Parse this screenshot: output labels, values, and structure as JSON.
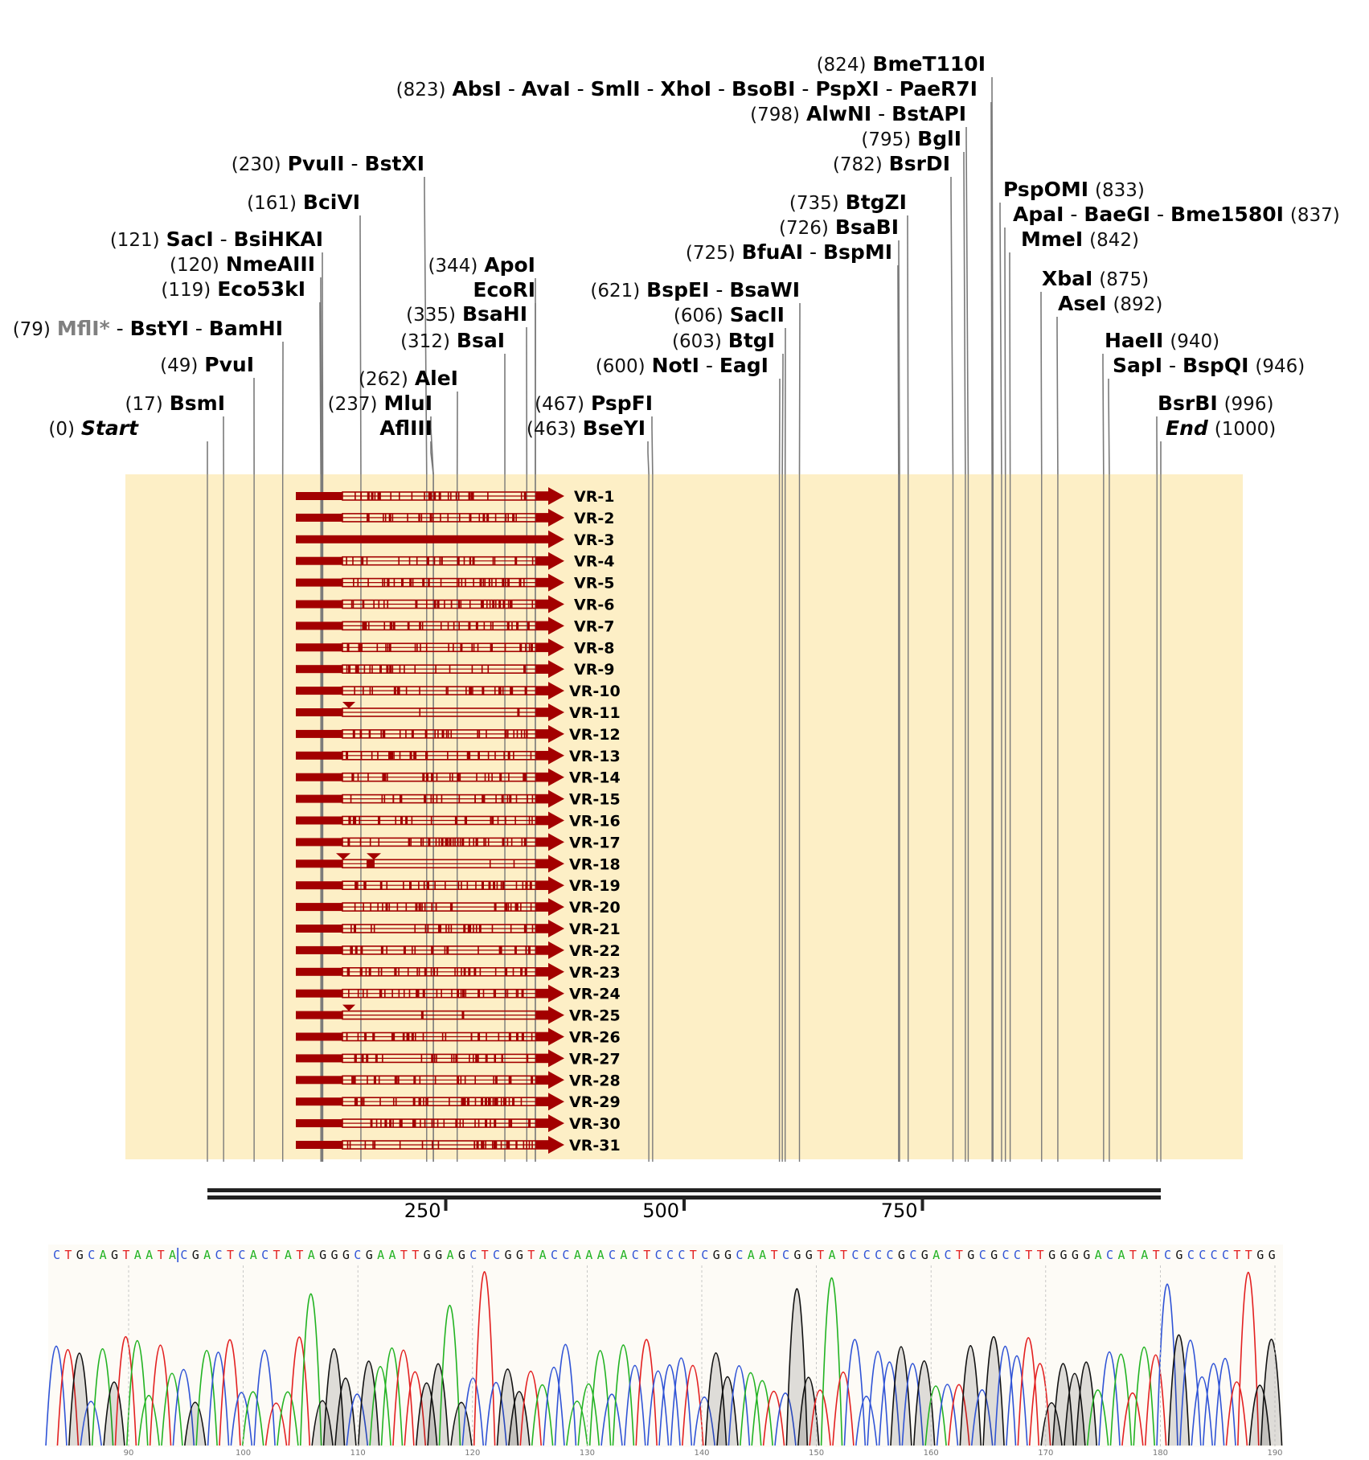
{
  "sequence_length": 1000,
  "colors": {
    "read_fill": "#a30000",
    "alignment_bg": "#fdefc6",
    "site_line": "#7a7a7a",
    "ruler": "#222222",
    "base_A": "#22b322",
    "base_C": "#2f53d6",
    "base_G": "#111111",
    "base_T": "#e32020",
    "trace_bg": "#fdfbf6"
  },
  "icons": {
    "read_end": "arrow-head",
    "insertion": "triangle-down-marker"
  },
  "sites": [
    {
      "id": "start",
      "number": "(0)",
      "names": [
        "Start"
      ],
      "pos": 0,
      "special": true
    },
    {
      "id": "bsmi",
      "number": "(17)",
      "names": [
        "BsmI"
      ],
      "pos": 17
    },
    {
      "id": "pvui",
      "number": "(49)",
      "names": [
        "PvuI"
      ],
      "pos": 49
    },
    {
      "id": "mfli",
      "number": "(79)",
      "names": [
        "MflI*",
        "BstYI",
        "BamHI"
      ],
      "pos": 79,
      "nondefault": [
        "MflI*"
      ]
    },
    {
      "id": "eco53ki",
      "number": "(119)",
      "names": [
        "Eco53kI"
      ],
      "pos": 119
    },
    {
      "id": "nmeaiii",
      "number": "(120)",
      "names": [
        "NmeAIII"
      ],
      "pos": 120
    },
    {
      "id": "saci",
      "number": "(121)",
      "names": [
        "SacI",
        "BsiHKAI"
      ],
      "pos": 121
    },
    {
      "id": "bcivi",
      "number": "(161)",
      "names": [
        "BciVI"
      ],
      "pos": 161
    },
    {
      "id": "pvuii",
      "number": "(230)",
      "names": [
        "PvuII",
        "BstXI"
      ],
      "pos": 230
    },
    {
      "id": "mlui",
      "number": "(237)",
      "names": [
        "MluI"
      ],
      "pos": 237
    },
    {
      "id": "afliii",
      "number": "",
      "names": [
        "AflIII"
      ],
      "pos": 237
    },
    {
      "id": "alei",
      "number": "(262)",
      "names": [
        "AleI"
      ],
      "pos": 262
    },
    {
      "id": "bsai",
      "number": "(312)",
      "names": [
        "BsaI"
      ],
      "pos": 312
    },
    {
      "id": "bsahi",
      "number": "(335)",
      "names": [
        "BsaHI"
      ],
      "pos": 335
    },
    {
      "id": "apoi",
      "number": "(344)",
      "names": [
        "ApoI"
      ],
      "pos": 344
    },
    {
      "id": "ecori",
      "number": "",
      "names": [
        "EcoRI"
      ],
      "pos": 344
    },
    {
      "id": "bseyi",
      "number": "(463)",
      "names": [
        "BseYI"
      ],
      "pos": 463
    },
    {
      "id": "pspfi",
      "number": "(467)",
      "names": [
        "PspFI"
      ],
      "pos": 467
    },
    {
      "id": "noti",
      "number": "(600)",
      "names": [
        "NotI",
        "EagI"
      ],
      "pos": 600
    },
    {
      "id": "btgi",
      "number": "(603)",
      "names": [
        "BtgI"
      ],
      "pos": 603
    },
    {
      "id": "sacii",
      "number": "(606)",
      "names": [
        "SacII"
      ],
      "pos": 606
    },
    {
      "id": "bspei",
      "number": "(621)",
      "names": [
        "BspEI",
        "BsaWI"
      ],
      "pos": 621
    },
    {
      "id": "bfuai",
      "number": "(725)",
      "names": [
        "BfuAI",
        "BspMI"
      ],
      "pos": 725
    },
    {
      "id": "bsabi",
      "number": "(726)",
      "names": [
        "BsaBI"
      ],
      "pos": 726
    },
    {
      "id": "btgzi",
      "number": "(735)",
      "names": [
        "BtgZI"
      ],
      "pos": 735
    },
    {
      "id": "bsrdi",
      "number": "(782)",
      "names": [
        "BsrDI"
      ],
      "pos": 782
    },
    {
      "id": "bgli",
      "number": "(795)",
      "names": [
        "BglI"
      ],
      "pos": 795
    },
    {
      "id": "alwni",
      "number": "(798)",
      "names": [
        "AlwNI",
        "BstAPI"
      ],
      "pos": 798
    },
    {
      "id": "absi",
      "number": "(823)",
      "names": [
        "AbsI",
        "AvaI",
        "SmlI",
        "XhoI",
        "BsoBI",
        "PspXI",
        "PaeR7I"
      ],
      "pos": 823
    },
    {
      "id": "bmet110i",
      "number": "(824)",
      "names": [
        "BmeT110I"
      ],
      "pos": 824
    },
    {
      "id": "pspomi",
      "number": "(833)",
      "names": [
        "PspOMI"
      ],
      "pos": 833
    },
    {
      "id": "apai",
      "number": "(837)",
      "names": [
        "ApaI",
        "BaeGI",
        "Bme1580I"
      ],
      "pos": 837
    },
    {
      "id": "mmei",
      "number": "(842)",
      "names": [
        "MmeI"
      ],
      "pos": 842
    },
    {
      "id": "xbai",
      "number": "(875)",
      "names": [
        "XbaI"
      ],
      "pos": 875
    },
    {
      "id": "asei",
      "number": "(892)",
      "names": [
        "AseI"
      ],
      "pos": 892
    },
    {
      "id": "haeii",
      "number": "(940)",
      "names": [
        "HaeII"
      ],
      "pos": 940
    },
    {
      "id": "sapi",
      "number": "(946)",
      "names": [
        "SapI",
        "BspQI"
      ],
      "pos": 946
    },
    {
      "id": "bsrbi",
      "number": "(996)",
      "names": [
        "BsrBI"
      ],
      "pos": 996
    },
    {
      "id": "end",
      "number": "(1000)",
      "names": [
        "End"
      ],
      "pos": 1000,
      "special": true
    }
  ],
  "reads": [
    {
      "label": "VR-1",
      "start": 91,
      "end": 372
    },
    {
      "label": "VR-2",
      "start": 91,
      "end": 372
    },
    {
      "label": "VR-3",
      "start": 91,
      "end": 372
    },
    {
      "label": "VR-4",
      "start": 91,
      "end": 372
    },
    {
      "label": "VR-5",
      "start": 91,
      "end": 372
    },
    {
      "label": "VR-6",
      "start": 91,
      "end": 372
    },
    {
      "label": "VR-7",
      "start": 91,
      "end": 372
    },
    {
      "label": "VR-8",
      "start": 91,
      "end": 372
    },
    {
      "label": "VR-9",
      "start": 91,
      "end": 372
    },
    {
      "label": "VR-10",
      "start": 91,
      "end": 372
    },
    {
      "label": "VR-11",
      "start": 91,
      "end": 372
    },
    {
      "label": "VR-12",
      "start": 91,
      "end": 372
    },
    {
      "label": "VR-13",
      "start": 91,
      "end": 372
    },
    {
      "label": "VR-14",
      "start": 91,
      "end": 372
    },
    {
      "label": "VR-15",
      "start": 91,
      "end": 372
    },
    {
      "label": "VR-16",
      "start": 91,
      "end": 372
    },
    {
      "label": "VR-17",
      "start": 91,
      "end": 372
    },
    {
      "label": "VR-18",
      "start": 91,
      "end": 372
    },
    {
      "label": "VR-19",
      "start": 91,
      "end": 372
    },
    {
      "label": "VR-20",
      "start": 91,
      "end": 372
    },
    {
      "label": "VR-21",
      "start": 91,
      "end": 372
    },
    {
      "label": "VR-22",
      "start": 91,
      "end": 372
    },
    {
      "label": "VR-23",
      "start": 91,
      "end": 372
    },
    {
      "label": "VR-24",
      "start": 91,
      "end": 372
    },
    {
      "label": "VR-25",
      "start": 91,
      "end": 372
    },
    {
      "label": "VR-26",
      "start": 91,
      "end": 372
    },
    {
      "label": "VR-27",
      "start": 91,
      "end": 372
    },
    {
      "label": "VR-28",
      "start": 91,
      "end": 372
    },
    {
      "label": "VR-29",
      "start": 91,
      "end": 372
    },
    {
      "label": "VR-30",
      "start": 91,
      "end": 372
    },
    {
      "label": "VR-31",
      "start": 91,
      "end": 372
    }
  ],
  "ruler": {
    "labels": [
      {
        "text": "250",
        "pos": 250
      },
      {
        "text": "500",
        "pos": 500
      },
      {
        "text": "750",
        "pos": 750
      }
    ]
  },
  "trace": {
    "bases": "CTGCAGTAATACGACTCACTATAGGGCGAATTGGAGCTCGGTACCAAACACTCCCTCGGCAATCGGTATCCCCGCGACTGCGCCTTGGGGACATATCGCCCCTTGG",
    "ticks": [
      "90",
      "100",
      "110",
      "120",
      "130",
      "140",
      "150",
      "160",
      "170",
      "180",
      "190"
    ]
  }
}
